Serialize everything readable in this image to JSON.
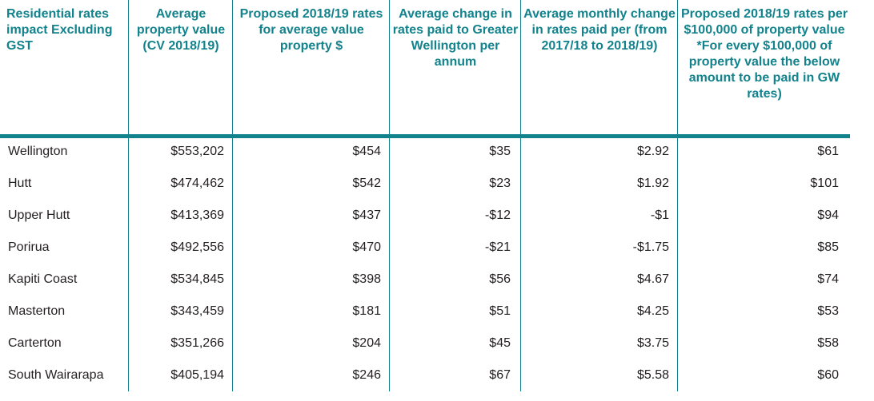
{
  "table": {
    "headers": [
      "Residential rates impact Excluding GST",
      "Average property value (CV 2018/19)",
      "Proposed 2018/19 rates for average value property $",
      "Average change in rates paid to Greater Wellington per annum",
      "Average monthly change in rates paid per (from 2017/18 to 2018/19)",
      "Proposed 2018/19 rates per $100,000 of property value"
    ],
    "header_note": "*For every $100,000 of property value the below amount to be paid in GW rates)",
    "rows": [
      [
        "Wellington",
        "$553,202",
        "$454",
        "$35",
        "$2.92",
        "$61"
      ],
      [
        "Hutt",
        "$474,462",
        "$542",
        "$23",
        "$1.92",
        "$101"
      ],
      [
        "Upper Hutt",
        "$413,369",
        "$437",
        "-$12",
        "-$1",
        "$94"
      ],
      [
        "Porirua",
        "$492,556",
        "$470",
        "-$21",
        "-$1.75",
        "$85"
      ],
      [
        "Kapiti Coast",
        "$534,845",
        "$398",
        "$56",
        "$4.67",
        "$74"
      ],
      [
        "Masterton",
        "$343,459",
        "$181",
        "$51",
        "$4.25",
        "$53"
      ],
      [
        "Carterton",
        "$351,266",
        "$204",
        "$45",
        "$3.75",
        "$58"
      ],
      [
        "South Wairarapa",
        "$405,194",
        "$246",
        "$67",
        "$5.58",
        "$60"
      ]
    ]
  },
  "colors": {
    "accent": "#12828c",
    "text": "#231f20"
  }
}
